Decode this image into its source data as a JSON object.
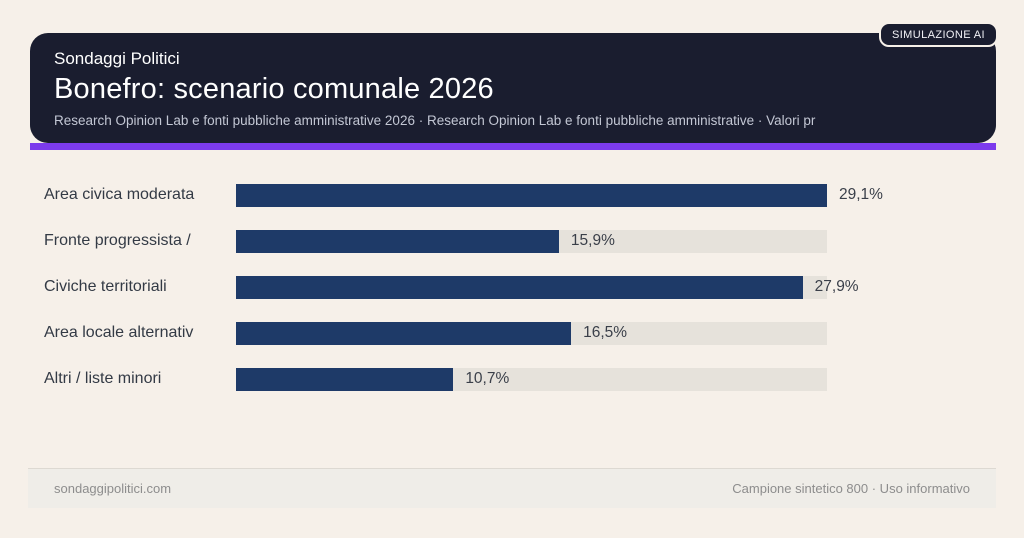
{
  "header": {
    "kicker": "Sondaggi Politici",
    "title": "Bonefro: scenario comunale 2026",
    "subtitle": "Research Opinion Lab e fonti pubbliche amministrative 2026 · Research Opinion Lab e fonti pubbliche amministrative · Valori pr",
    "badge": "SIMULAZIONE AI"
  },
  "chart_data": {
    "type": "bar",
    "orientation": "horizontal",
    "title": "Bonefro: scenario comunale 2026",
    "categories": [
      "Area civica moderata",
      "Fronte progressista /",
      "Civiche territoriali",
      "Area locale alternativ",
      "Altri / liste minori"
    ],
    "values": [
      29.1,
      15.9,
      27.9,
      16.5,
      10.7
    ],
    "value_labels": [
      "29,1%",
      "15,9%",
      "27,9%",
      "16,5%",
      "10,7%"
    ],
    "unit": "%",
    "xlim": [
      0,
      29.1
    ],
    "grid": false,
    "legend": false,
    "bar_color": "#1e3a68",
    "track_color": "#e6e2db"
  },
  "footer": {
    "left": "sondaggipolitici.com",
    "right": "Campione sintetico 800 · Uso informativo"
  },
  "colors": {
    "background": "#f6f0e9",
    "card": "#1a1d2f",
    "accent": "#7c3bec",
    "bar": "#1e3a68",
    "track": "#e6e2db"
  }
}
